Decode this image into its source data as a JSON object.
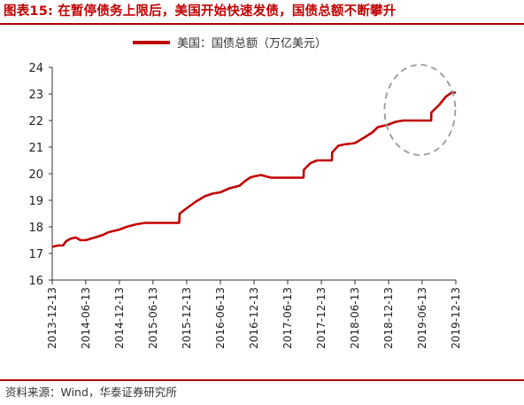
{
  "figure_title": "图表15: 在暂停债务上限后，美国开始快速发债，国债总额不断攀升",
  "source": "资料来源：Wind，华泰证券研究所",
  "colors": {
    "accent": "#c00000",
    "line": "#c00000",
    "annotation": "#999999"
  },
  "chart_data": {
    "type": "line",
    "title": "",
    "xlabel": "",
    "ylabel": "",
    "ylim": [
      16,
      24
    ],
    "yticks": [
      "16",
      "17",
      "18",
      "19",
      "20",
      "21",
      "22",
      "23",
      "24"
    ],
    "xticks": [
      "2013-12-13",
      "2014-06-13",
      "2014-12-13",
      "2015-06-13",
      "2015-12-13",
      "2016-06-13",
      "2016-12-13",
      "2017-06-13",
      "2017-12-13",
      "2018-06-13",
      "2018-12-13",
      "2019-06-13",
      "2019-12-13"
    ],
    "xlim": [
      "2013-12-13",
      "2019-12-13"
    ],
    "grid": false,
    "legend_position": "top-center",
    "annotation": "dashed-circle highlighting 2019 debt ceiling suspension and rebound",
    "series": [
      {
        "name": "美国：国债总额（万亿美元）",
        "points": [
          [
            "2013-12-13",
            17.25
          ],
          [
            "2014-01-15",
            17.3
          ],
          [
            "2014-02-10",
            17.3
          ],
          [
            "2014-02-25",
            17.45
          ],
          [
            "2014-03-20",
            17.55
          ],
          [
            "2014-04-20",
            17.6
          ],
          [
            "2014-05-15",
            17.5
          ],
          [
            "2014-06-13",
            17.5
          ],
          [
            "2014-08-01",
            17.6
          ],
          [
            "2014-09-15",
            17.7
          ],
          [
            "2014-10-15",
            17.8
          ],
          [
            "2014-12-13",
            17.9
          ],
          [
            "2015-01-20",
            18.0
          ],
          [
            "2015-03-16",
            18.1
          ],
          [
            "2015-05-01",
            18.15
          ],
          [
            "2015-06-13",
            18.15
          ],
          [
            "2015-08-01",
            18.15
          ],
          [
            "2015-10-15",
            18.15
          ],
          [
            "2015-11-02",
            18.15
          ],
          [
            "2015-11-05",
            18.5
          ],
          [
            "2015-12-13",
            18.7
          ],
          [
            "2016-02-01",
            18.95
          ],
          [
            "2016-03-20",
            19.15
          ],
          [
            "2016-05-01",
            19.25
          ],
          [
            "2016-06-13",
            19.3
          ],
          [
            "2016-08-01",
            19.45
          ],
          [
            "2016-09-25",
            19.55
          ],
          [
            "2016-10-20",
            19.7
          ],
          [
            "2016-11-20",
            19.85
          ],
          [
            "2016-12-13",
            19.9
          ],
          [
            "2017-01-20",
            19.95
          ],
          [
            "2017-02-15",
            19.9
          ],
          [
            "2017-03-16",
            19.85
          ],
          [
            "2017-06-13",
            19.85
          ],
          [
            "2017-09-07",
            19.85
          ],
          [
            "2017-09-09",
            20.15
          ],
          [
            "2017-10-15",
            20.4
          ],
          [
            "2017-11-20",
            20.5
          ],
          [
            "2017-12-13",
            20.5
          ],
          [
            "2018-02-08",
            20.5
          ],
          [
            "2018-02-10",
            20.8
          ],
          [
            "2018-03-15",
            21.05
          ],
          [
            "2018-04-15",
            21.1
          ],
          [
            "2018-06-13",
            21.15
          ],
          [
            "2018-08-01",
            21.35
          ],
          [
            "2018-09-15",
            21.55
          ],
          [
            "2018-10-15",
            21.75
          ],
          [
            "2018-12-13",
            21.85
          ],
          [
            "2019-01-20",
            21.95
          ],
          [
            "2019-03-01",
            22.0
          ],
          [
            "2019-03-02",
            22.0
          ],
          [
            "2019-06-13",
            22.0
          ],
          [
            "2019-08-01",
            22.0
          ],
          [
            "2019-08-02",
            22.3
          ],
          [
            "2019-09-15",
            22.6
          ],
          [
            "2019-10-20",
            22.9
          ],
          [
            "2019-11-20",
            23.05
          ],
          [
            "2019-12-13",
            23.05
          ]
        ]
      }
    ]
  }
}
